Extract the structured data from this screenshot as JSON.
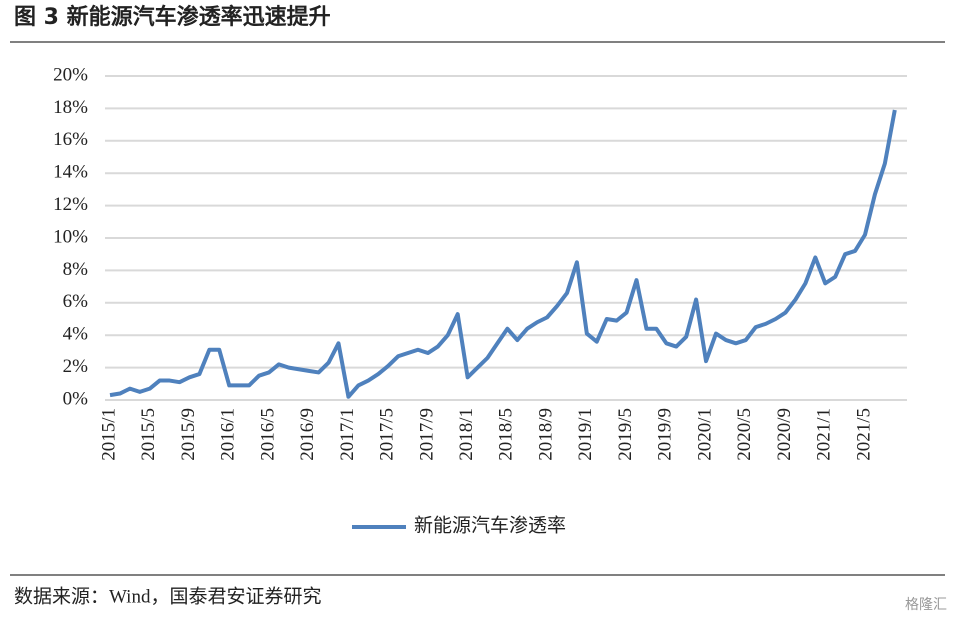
{
  "chart_data": {
    "type": "line",
    "title": "图 3  新能源汽车渗透率迅速提升",
    "source": "数据来源：Wind，国泰君安证券研究",
    "watermark": "格隆汇",
    "categories": [
      "2015/1",
      null,
      null,
      null,
      "2015/5",
      null,
      null,
      null,
      "2015/9",
      null,
      null,
      null,
      "2016/1",
      null,
      null,
      null,
      "2016/5",
      null,
      null,
      null,
      "2016/9",
      null,
      null,
      null,
      "2017/1",
      null,
      null,
      null,
      "2017/5",
      null,
      null,
      null,
      "2017/9",
      null,
      null,
      null,
      "2018/1",
      null,
      null,
      null,
      "2018/5",
      null,
      null,
      null,
      "2018/9",
      null,
      null,
      null,
      "2019/1",
      null,
      null,
      null,
      "2019/5",
      null,
      null,
      null,
      "2019/9",
      null,
      null,
      null,
      "2020/1",
      null,
      null,
      null,
      "2020/5",
      null,
      null,
      null,
      "2020/9",
      null,
      null,
      null,
      "2021/1",
      null,
      null,
      null,
      "2021/5",
      null,
      null,
      null
    ],
    "series": [
      {
        "name": "新能源汽车渗透率",
        "color": "#4f81bd",
        "values": [
          0.3,
          0.4,
          0.7,
          0.5,
          0.7,
          1.2,
          1.2,
          1.1,
          1.4,
          1.6,
          3.1,
          3.1,
          0.9,
          0.9,
          0.9,
          1.5,
          1.7,
          2.2,
          2.0,
          1.9,
          1.8,
          1.7,
          2.3,
          3.5,
          0.2,
          0.9,
          1.2,
          1.6,
          2.1,
          2.7,
          2.9,
          3.1,
          2.9,
          3.3,
          4.0,
          5.3,
          1.4,
          2.0,
          2.6,
          3.5,
          4.4,
          3.7,
          4.4,
          4.8,
          5.1,
          5.8,
          6.6,
          8.5,
          4.1,
          3.6,
          5.0,
          4.9,
          5.4,
          7.4,
          4.4,
          4.4,
          3.5,
          3.3,
          3.9,
          6.2,
          2.4,
          4.1,
          3.7,
          3.5,
          3.7,
          4.5,
          4.7,
          5.0,
          5.4,
          6.2,
          7.2,
          8.8,
          7.2,
          7.6,
          9.0,
          9.2,
          10.2,
          12.7,
          14.6,
          17.9
        ]
      }
    ],
    "ylim": [
      0,
      20
    ],
    "yticks": [
      {
        "value": 0,
        "label": "0%"
      },
      {
        "value": 2,
        "label": "2%"
      },
      {
        "value": 4,
        "label": "4%"
      },
      {
        "value": 6,
        "label": "6%"
      },
      {
        "value": 8,
        "label": "8%"
      },
      {
        "value": 10,
        "label": "10%"
      },
      {
        "value": 12,
        "label": "12%"
      },
      {
        "value": 14,
        "label": "14%"
      },
      {
        "value": 16,
        "label": "16%"
      },
      {
        "value": 18,
        "label": "18%"
      },
      {
        "value": 20,
        "label": "20%"
      }
    ],
    "grid": true,
    "legend": "bottom"
  }
}
